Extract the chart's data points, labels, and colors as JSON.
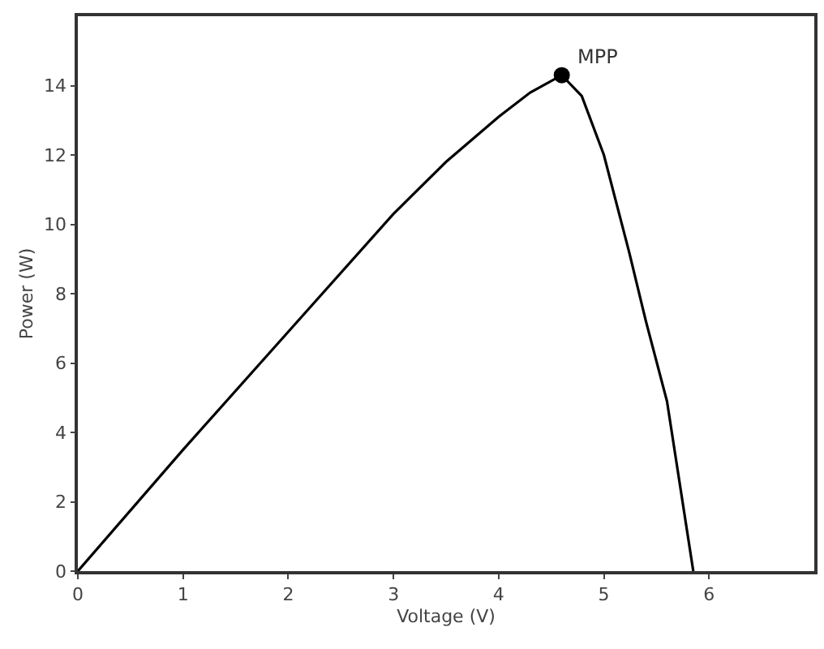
{
  "chart_data": {
    "type": "line",
    "xlabel": "Voltage (V)",
    "ylabel": "Power (W)",
    "xlim": [
      0,
      7
    ],
    "xticks": [
      0,
      1,
      2,
      3,
      4,
      5,
      6
    ],
    "ylim": [
      0,
      16
    ],
    "yticks": [
      0,
      2,
      4,
      6,
      8,
      10,
      12,
      14
    ],
    "line_style": "solid",
    "series": [
      {
        "color": "#000000",
        "x": [
          0,
          1,
          2,
          3,
          3.5,
          4,
          4.3,
          4.6,
          4.79,
          5.0,
          5.24,
          5.4,
          5.6,
          5.85
        ],
        "values": [
          0,
          3.5,
          6.9,
          10.3,
          11.8,
          13.1,
          13.8,
          14.3,
          13.7,
          12.0,
          9.2,
          7.2,
          4.9,
          0
        ]
      },
      {
        "type": "scatter",
        "color": "#000000",
        "marker": "circle",
        "x": [
          4.6
        ],
        "values": [
          14.3
        ]
      }
    ],
    "annotations": [
      {
        "text": "MPP",
        "x": 4.6,
        "y": 14.3
      }
    ]
  }
}
